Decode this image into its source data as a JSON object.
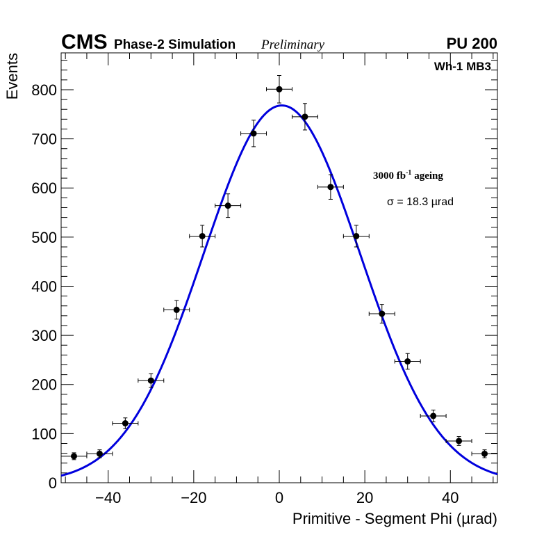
{
  "chart_data": {
    "type": "scatter",
    "title": "",
    "experiment_label": "CMS",
    "status_label": "Phase-2 Simulation",
    "preliminary_label": "Preliminary",
    "pileup_label": "PU 200",
    "chamber_label": "Wh-1 MB3",
    "ageing_label": "3000 fb",
    "ageing_superscript": "-1",
    "ageing_suffix": "ageing",
    "sigma_label": "σ = 18.3 µrad",
    "xlabel": "Primitive - Segment Phi (µrad)",
    "ylabel": "Events",
    "xlim": [
      -51,
      51
    ],
    "ylim": [
      0,
      875
    ],
    "x_ticks": [
      -40,
      -20,
      0,
      20,
      40
    ],
    "x_tick_labels": [
      "−40",
      "−20",
      "0",
      "20",
      "40"
    ],
    "y_ticks": [
      0,
      100,
      200,
      300,
      400,
      500,
      600,
      700,
      800
    ],
    "y_tick_labels": [
      "0",
      "100",
      "200",
      "300",
      "400",
      "500",
      "600",
      "700",
      "800"
    ],
    "bin_half_width": 3,
    "series": [
      {
        "name": "Simulation",
        "marker": "circle",
        "color": "#000000",
        "x": [
          -48,
          -42,
          -36,
          -30,
          -24,
          -18,
          -12,
          -6,
          0,
          6,
          12,
          18,
          24,
          30,
          36,
          42,
          48
        ],
        "y": [
          54,
          59,
          121,
          208,
          352,
          502,
          564,
          711,
          801,
          745,
          602,
          502,
          344,
          247,
          136,
          85,
          59
        ],
        "yerr": [
          7,
          8,
          11,
          14,
          19,
          22,
          24,
          27,
          28,
          27,
          25,
          22,
          19,
          16,
          12,
          9,
          8
        ]
      },
      {
        "name": "Gaussian fit",
        "style": "line",
        "color": "#0000dd",
        "mean": 0.6,
        "amplitude": 768,
        "sigma_fit": 18.3
      }
    ]
  }
}
